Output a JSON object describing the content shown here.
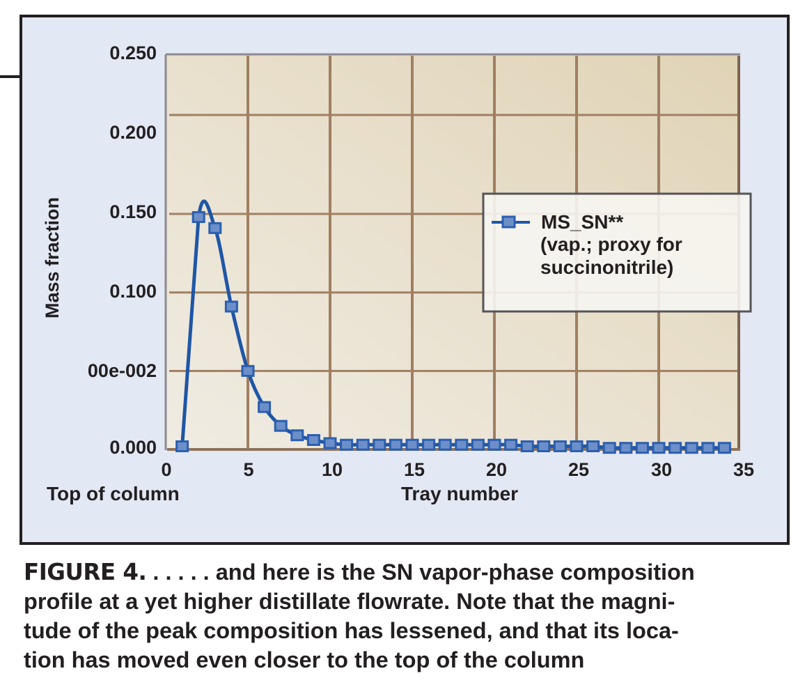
{
  "chart_data": {
    "type": "line",
    "title": "",
    "xlabel": "Tray number",
    "xlabel_secondary": "Top of column",
    "ylabel": "Mass fraction",
    "xlim": [
      0,
      35
    ],
    "ylim": [
      0,
      0.25
    ],
    "x_ticks": [
      "0",
      "5",
      "10",
      "15",
      "20",
      "25",
      "30",
      "35"
    ],
    "y_ticks": [
      "0.000",
      "00e-002",
      "0.100",
      "0.150",
      "0.200",
      "0.250"
    ],
    "grid": true,
    "legend_position": "upper right (inside plot)",
    "series": [
      {
        "name": "MS_SN** (vap.; proxy for succinonitrile)",
        "color": "#1f56a6",
        "marker": "square",
        "x": [
          1,
          2,
          3,
          4,
          5,
          6,
          7,
          8,
          9,
          10,
          11,
          12,
          13,
          14,
          15,
          16,
          17,
          18,
          19,
          20,
          21,
          22,
          23,
          24,
          25,
          26,
          27,
          28,
          29,
          30,
          31,
          32,
          33,
          34
        ],
        "values": [
          0.002,
          0.148,
          0.141,
          0.091,
          0.05,
          0.027,
          0.015,
          0.009,
          0.006,
          0.004,
          0.003,
          0.003,
          0.003,
          0.003,
          0.003,
          0.003,
          0.003,
          0.003,
          0.003,
          0.003,
          0.003,
          0.002,
          0.002,
          0.002,
          0.002,
          0.002,
          0.001,
          0.001,
          0.001,
          0.001,
          0.001,
          0.001,
          0.001,
          0.001
        ]
      }
    ]
  },
  "legend": {
    "line1": "MS_SN**",
    "line2": "(vap.; proxy for",
    "line3": "succinonitrile)"
  },
  "axes": {
    "ylabel": "Mass fraction",
    "xlabel": "Tray number",
    "xlabel_left": "Top of column",
    "y_ticks": [
      "0.250",
      "0.200",
      "0.150",
      "0.100",
      "00e-002",
      "0.000"
    ],
    "x_ticks": [
      "0",
      "5",
      "10",
      "15",
      "20",
      "25",
      "30",
      "35"
    ]
  },
  "caption": {
    "figure_label": "FIGURE 4.",
    "line1": " . . . . . and here is the SN vapor-phase composition",
    "line2": "profile at a yet higher distillate flowrate.  Note that the magni-",
    "line3": "tude of the peak composition has lessened, and that its loca-",
    "line4": "tion has moved even closer to the top of the column"
  },
  "colors": {
    "frame_bg": "#e2e8f4",
    "plot_bg_light": "#efebe2",
    "plot_bg_dark": "#e0d3b6",
    "grid": "#a07f62",
    "series": "#1f56a6",
    "marker_fill": "#6d8fc9"
  }
}
